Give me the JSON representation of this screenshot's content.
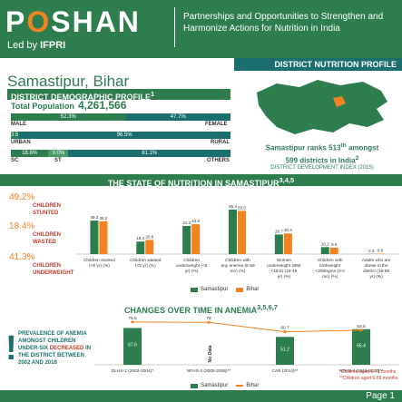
{
  "header": {
    "logo_p": "P",
    "logo_o": "O",
    "logo_rest": "SHAN",
    "led_by": "Led by",
    "ifpri": "IFPRI",
    "tagline": "Partnerships and Opportunities to Strengthen and Harmonize Actions for Nutrition in India"
  },
  "profile_label": "DISTRICT NUTRITION PROFILE",
  "district_name": "Samastipur, Bihar",
  "demographic": {
    "title": "DISTRICT DEMOGRAPHIC PROFILE",
    "title_sup": "1",
    "total_population_label": "Total Population",
    "total_population_value": "4,261,566",
    "gender": {
      "male_label": "MALE",
      "female_label": "FEMALE",
      "male_pct": "52.3%",
      "female_pct": "47.7%",
      "male": 52.3,
      "female": 47.7
    },
    "urban": {
      "urban_label": "URBAN",
      "rural_label": "RURAL",
      "urban_pct": "3.5%",
      "rural_pct": "96.5%",
      "urban": 3.5,
      "rural": 96.5
    },
    "caste": {
      "sc_label": "SC",
      "st_label": "ST",
      "others_label": "OTHERS",
      "sc_pct": "18.8%",
      "st_pct": "0.0%",
      "others_pct": "81.1%",
      "sc": 18.8,
      "st": 0.0,
      "others": 81.1
    }
  },
  "ranking": {
    "line1": "Samastipur ranks 513",
    "line1_sup": "th",
    "line1_end": " amongst",
    "line2": "599 districts in India",
    "line2_sup": "2",
    "index": "DISTRICT DEVELOPMENT INDEX (2015)"
  },
  "state_of_nutrition": {
    "title": "THE STATE OF NUTRITION IN SAMASTIPUR",
    "title_sup": "3,4,5",
    "stats": [
      {
        "value": "49.2%",
        "label1": "CHILDREN",
        "label2": "STUNTED"
      },
      {
        "value": "18.4%",
        "label1": "CHILDREN",
        "label2": "WASTED"
      },
      {
        "value": "41.3%",
        "label1": "CHILDREN",
        "label2": "UNDERWEIGHT"
      }
    ]
  },
  "colors": {
    "green": "#2e7d4f",
    "orange": "#f58220",
    "teal": "#1b6e6e",
    "male": "#2e7d4f",
    "female": "#1b6e6e"
  },
  "chart_data": [
    {
      "type": "bar",
      "categories": [
        "Children stunted (<5 yr) (%)",
        "Children wasted (<5 yr) (%)",
        "Children underweight (<5 yr) (%)",
        "Children with any anemia (6-59 mo) (%)",
        "Women underweight (BMI <18.5) (15-49 yr) (%)",
        "Children with birthweight <2500gms (0-2 mo) (%)",
        "Adults who are obese in the district (18-59 yr) (%)"
      ],
      "series": [
        {
          "name": "Samastipur",
          "values": [
            49.2,
            18.4,
            41.3,
            65.4,
            28.7,
            10.2,
            0.3
          ]
        },
        {
          "name": "Bihar",
          "values": [
            48.3,
            20.8,
            43.9,
            63.5,
            30.4,
            9.5,
            0.6
          ]
        }
      ],
      "ylim": [
        0,
        80
      ]
    },
    {
      "type": "bar",
      "title": "CHANGES OVER TIME IN ANEMIA",
      "title_sup": "3,5,6,7",
      "categories": [
        "DLHS-2 (2002-2004)*",
        "NFHS-3 (2005-2006)**",
        "CAB (2014)**",
        "NFHS-4 (2015-2016)**"
      ],
      "series": [
        {
          "name": "Samastipur",
          "values": [
            67.6,
            null,
            51.2,
            65.4
          ]
        },
        {
          "name": "Bihar",
          "values": [
            78.5,
            78.0,
            60.7,
            63.5
          ]
        }
      ],
      "na_label": "No Data",
      "notes": [
        "*Children aged 6-71 months",
        "**Children aged 6-59 months"
      ],
      "ylim": [
        0,
        90
      ]
    }
  ],
  "anemia_text": {
    "part1": "PREVALENCE OF ANEMIA AMONGST CHILDREN UNDER-SIX",
    "highlight": "DECREASED",
    "part2": "IN THE DISTRICT BETWEEN 2002 AND 2016"
  },
  "page_label": "Page 1"
}
